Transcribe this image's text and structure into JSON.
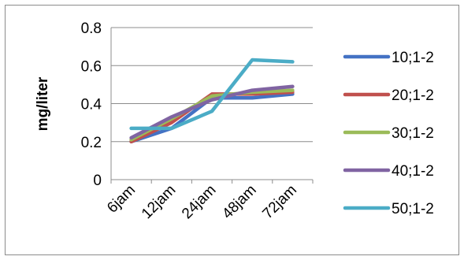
{
  "chart_data": {
    "type": "line",
    "categories": [
      "6jam",
      "12jam",
      "24jam",
      "48jam",
      "72jam"
    ],
    "ylabel": "mg/liter",
    "xlabel": "",
    "ylim": [
      0,
      0.8
    ],
    "yticks": [
      "0",
      "0.2",
      "0.4",
      "0.6",
      "0.8"
    ],
    "grid": true,
    "legend_position": "right",
    "series": [
      {
        "name": "10;1-2",
        "color": "#4472C4",
        "values": [
          0.2,
          0.27,
          0.43,
          0.43,
          0.45
        ]
      },
      {
        "name": "20;1-2",
        "color": "#C0504D",
        "values": [
          0.2,
          0.3,
          0.45,
          0.45,
          0.46
        ]
      },
      {
        "name": "30;1-2",
        "color": "#9BBB59",
        "values": [
          0.21,
          0.32,
          0.44,
          0.46,
          0.47
        ]
      },
      {
        "name": "40;1-2",
        "color": "#8064A2",
        "values": [
          0.22,
          0.33,
          0.42,
          0.47,
          0.49
        ]
      },
      {
        "name": "50;1-2",
        "color": "#4BACC6",
        "values": [
          0.27,
          0.27,
          0.36,
          0.63,
          0.62
        ]
      }
    ]
  }
}
